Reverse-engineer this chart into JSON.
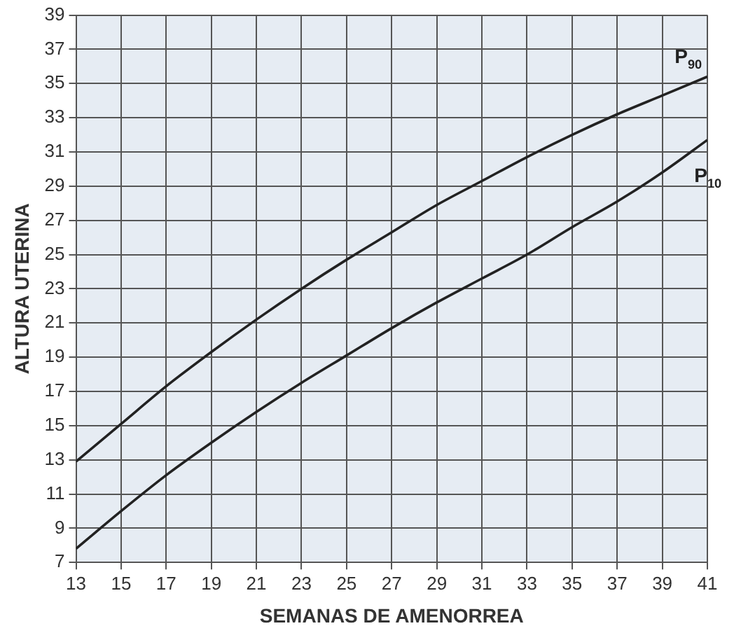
{
  "chart_data": {
    "type": "line",
    "xlabel": "SEMANAS DE AMENORREA",
    "ylabel": "ALTURA UTERINA",
    "x": [
      13,
      15,
      17,
      19,
      21,
      23,
      25,
      27,
      29,
      31,
      33,
      35,
      37,
      39,
      41
    ],
    "series": [
      {
        "name": "P$_{90}$",
        "color": "#222222",
        "values": [
          12.9,
          15.1,
          17.3,
          19.3,
          21.2,
          23.0,
          24.7,
          26.3,
          27.9,
          29.3,
          30.7,
          32.0,
          33.2,
          34.3,
          35.4
        ]
      },
      {
        "name": "P$_{10}$",
        "color": "#222222",
        "values": [
          7.8,
          10.0,
          12.1,
          14.0,
          15.8,
          17.5,
          19.1,
          20.7,
          22.2,
          23.6,
          25.0,
          26.6,
          28.1,
          29.8,
          31.7
        ]
      }
    ],
    "xlim": [
      13,
      41
    ],
    "xticks": [
      13,
      15,
      17,
      19,
      21,
      23,
      25,
      27,
      29,
      31,
      33,
      35,
      37,
      39,
      41
    ],
    "ylim": [
      7,
      39
    ],
    "yticks": [
      7,
      9,
      11,
      13,
      15,
      17,
      19,
      21,
      23,
      25,
      27,
      29,
      31,
      33,
      35,
      37,
      39
    ],
    "grid": true,
    "legend": false,
    "marker": "none",
    "line_style": "solid"
  }
}
